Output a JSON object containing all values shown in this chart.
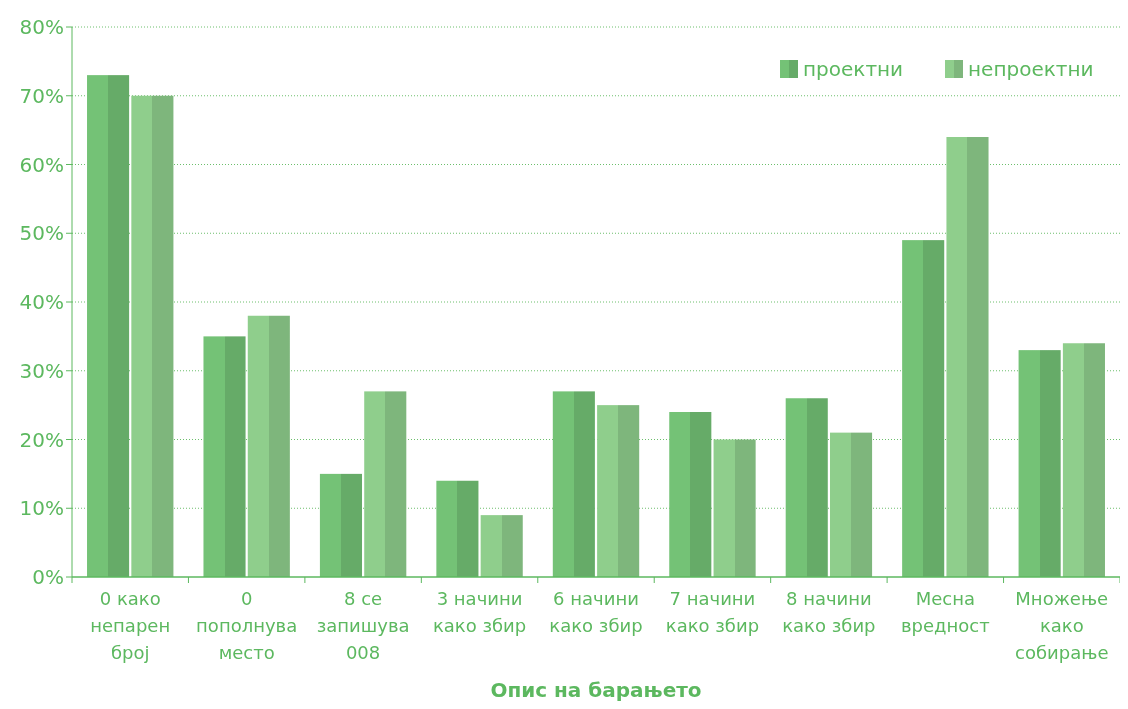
{
  "chart_data": {
    "type": "bar",
    "xlabel": "Опис на барањето",
    "categories": [
      "0 како\nнепарен\nброј",
      "0\nпополнува\nместо",
      "8 се\nзапишува\n008",
      "3 начини\nкако збир",
      "6 начини\nкако збир",
      "7 начини\nкако збир",
      "8 начини\nкако збир",
      "Месна\nвредност",
      "Множење\nкако\nсобирање"
    ],
    "series": [
      {
        "name": "проектни",
        "color": "#74c276",
        "values": [
          73,
          35,
          15,
          14,
          27,
          24,
          26,
          49,
          33
        ]
      },
      {
        "name": "непроектни",
        "color": "#8fce8c",
        "values": [
          70,
          38,
          27,
          9,
          25,
          20,
          21,
          64,
          34
        ]
      }
    ],
    "ylim": [
      0,
      80
    ],
    "yticks": [
      {
        "value": 0,
        "label": "0%"
      },
      {
        "value": 10,
        "label": "10%"
      },
      {
        "value": 20,
        "label": "20%"
      },
      {
        "value": 30,
        "label": "30%"
      },
      {
        "value": 40,
        "label": "40%"
      },
      {
        "value": 50,
        "label": "50%"
      },
      {
        "value": 60,
        "label": "60%"
      },
      {
        "value": 70,
        "label": "70%"
      },
      {
        "value": 80,
        "label": "80%"
      }
    ],
    "grid": "y",
    "legend": "top right"
  }
}
